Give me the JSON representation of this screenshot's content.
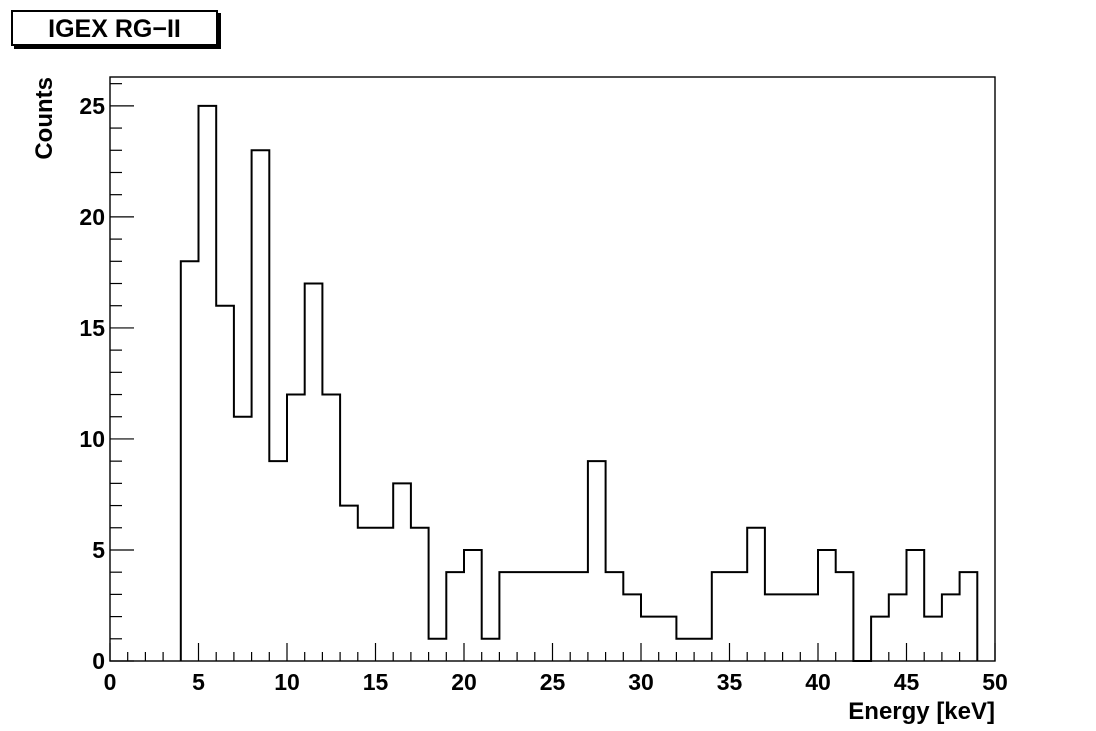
{
  "chart_data": {
    "type": "bar",
    "title": "IGEX RG−II",
    "xlabel": "Energy [keV]",
    "ylabel": "Counts",
    "xlim": [
      0,
      50
    ],
    "ylim": [
      0,
      26.3
    ],
    "x_ticks": [
      0,
      5,
      10,
      15,
      20,
      25,
      30,
      35,
      40,
      45,
      50
    ],
    "y_ticks": [
      0,
      5,
      10,
      15,
      20,
      25
    ],
    "bin_width": 1,
    "bin_edges_start": 4,
    "values": [
      18,
      25,
      16,
      11,
      23,
      9,
      12,
      17,
      12,
      7,
      6,
      6,
      8,
      6,
      1,
      4,
      5,
      1,
      4,
      4,
      4,
      4,
      4,
      9,
      4,
      3,
      2,
      2,
      1,
      1,
      4,
      4,
      6,
      3,
      3,
      3,
      5,
      4,
      0,
      2,
      3,
      5,
      2,
      3,
      4
    ],
    "grid": false,
    "legend": "none",
    "colors": {
      "line": "#000000",
      "background": "#ffffff",
      "frame": "#000000"
    }
  }
}
